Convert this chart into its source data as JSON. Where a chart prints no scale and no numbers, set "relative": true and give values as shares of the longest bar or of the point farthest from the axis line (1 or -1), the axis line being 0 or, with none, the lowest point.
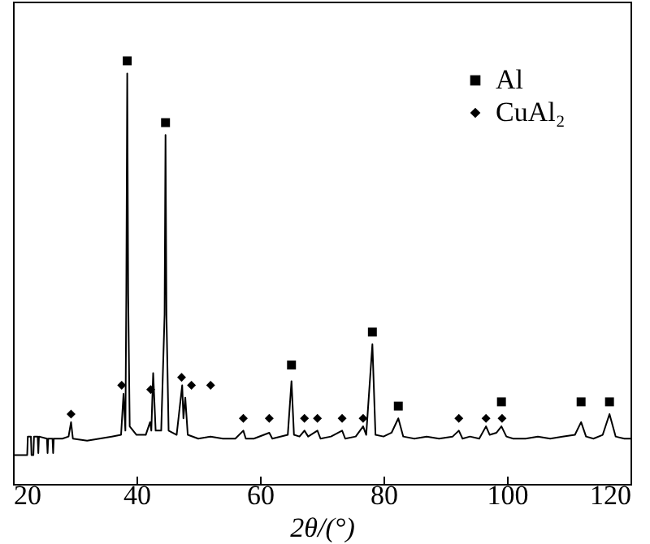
{
  "chart_data": {
    "type": "line",
    "relative": true,
    "xlabel": "2θ/(°)",
    "xlim": [
      20,
      120
    ],
    "xticks": [
      20,
      40,
      60,
      80,
      100,
      120
    ],
    "legend": "top right",
    "series": [
      {
        "color": "#000000",
        "marker": "none",
        "x": [
          20,
          22.3,
          22.4,
          22.9,
          23.0,
          23.3,
          23.4,
          24.0,
          24.1,
          24.2,
          25.5,
          25.6,
          25.7,
          26.4,
          26.5,
          26.6,
          28.0,
          29.0,
          29.4,
          29.7,
          32,
          34,
          36,
          37.5,
          37.9,
          38.2,
          38.35,
          38.5,
          38.65,
          38.9,
          40,
          41.5,
          42.2,
          42.4,
          42.7,
          43.1,
          44.0,
          44.55,
          44.7,
          44.85,
          45.2,
          46.5,
          47.4,
          47.6,
          47.9,
          48.3,
          50,
          52,
          54,
          56,
          57.3,
          57.7,
          59,
          61.5,
          62,
          64.5,
          65.1,
          65.5,
          66.4,
          67.2,
          67.8,
          69.3,
          69.8,
          71.5,
          73.3,
          73.8,
          75.5,
          76.7,
          77.2,
          78.2,
          78.7,
          80,
          81.3,
          82.4,
          83.2,
          85,
          87,
          89,
          91.2,
          92.2,
          92.8,
          94,
          95.5,
          96.6,
          97.2,
          98.3,
          99.1,
          99.9,
          101,
          103,
          105,
          107,
          109,
          111,
          112.0,
          112.8,
          114,
          115.5,
          116.6,
          117.6,
          119,
          120
        ],
        "values": [
          0.068,
          0.068,
          0.112,
          0.112,
          0.068,
          0.068,
          0.112,
          0.112,
          0.073,
          0.112,
          0.107,
          0.073,
          0.107,
          0.107,
          0.073,
          0.107,
          0.107,
          0.112,
          0.146,
          0.107,
          0.102,
          0.107,
          0.112,
          0.116,
          0.213,
          0.126,
          0.45,
          0.97,
          0.45,
          0.136,
          0.116,
          0.116,
          0.146,
          0.126,
          0.262,
          0.126,
          0.126,
          0.4,
          0.825,
          0.4,
          0.126,
          0.116,
          0.233,
          0.155,
          0.204,
          0.116,
          0.107,
          0.112,
          0.107,
          0.107,
          0.126,
          0.107,
          0.107,
          0.121,
          0.107,
          0.116,
          0.243,
          0.116,
          0.112,
          0.126,
          0.112,
          0.126,
          0.107,
          0.112,
          0.126,
          0.107,
          0.112,
          0.136,
          0.116,
          0.33,
          0.116,
          0.112,
          0.121,
          0.155,
          0.112,
          0.107,
          0.112,
          0.107,
          0.112,
          0.126,
          0.107,
          0.112,
          0.107,
          0.136,
          0.116,
          0.121,
          0.136,
          0.112,
          0.107,
          0.107,
          0.112,
          0.107,
          0.112,
          0.116,
          0.146,
          0.112,
          0.107,
          0.116,
          0.165,
          0.112,
          0.107,
          0.107
        ]
      },
      {
        "type": "scatter",
        "name": "Al",
        "color": "#000000",
        "marker": "square",
        "x": [
          38.5,
          44.7,
          65.1,
          78.2,
          82.4,
          99.1,
          112.0,
          116.6
        ],
        "values": [
          1.0,
          0.854,
          0.281,
          0.359,
          0.184,
          0.194,
          0.194,
          0.194
        ]
      },
      {
        "type": "scatter",
        "name": "CuAl₂",
        "color": "#000000",
        "marker": "diamond",
        "x": [
          29.4,
          37.6,
          42.3,
          47.3,
          48.9,
          52.0,
          57.3,
          61.5,
          67.2,
          69.3,
          73.3,
          76.7,
          92.2,
          96.6,
          99.2
        ],
        "values": [
          0.165,
          0.233,
          0.223,
          0.252,
          0.233,
          0.233,
          0.155,
          0.155,
          0.155,
          0.155,
          0.155,
          0.155,
          0.155,
          0.155,
          0.155
        ]
      }
    ]
  }
}
